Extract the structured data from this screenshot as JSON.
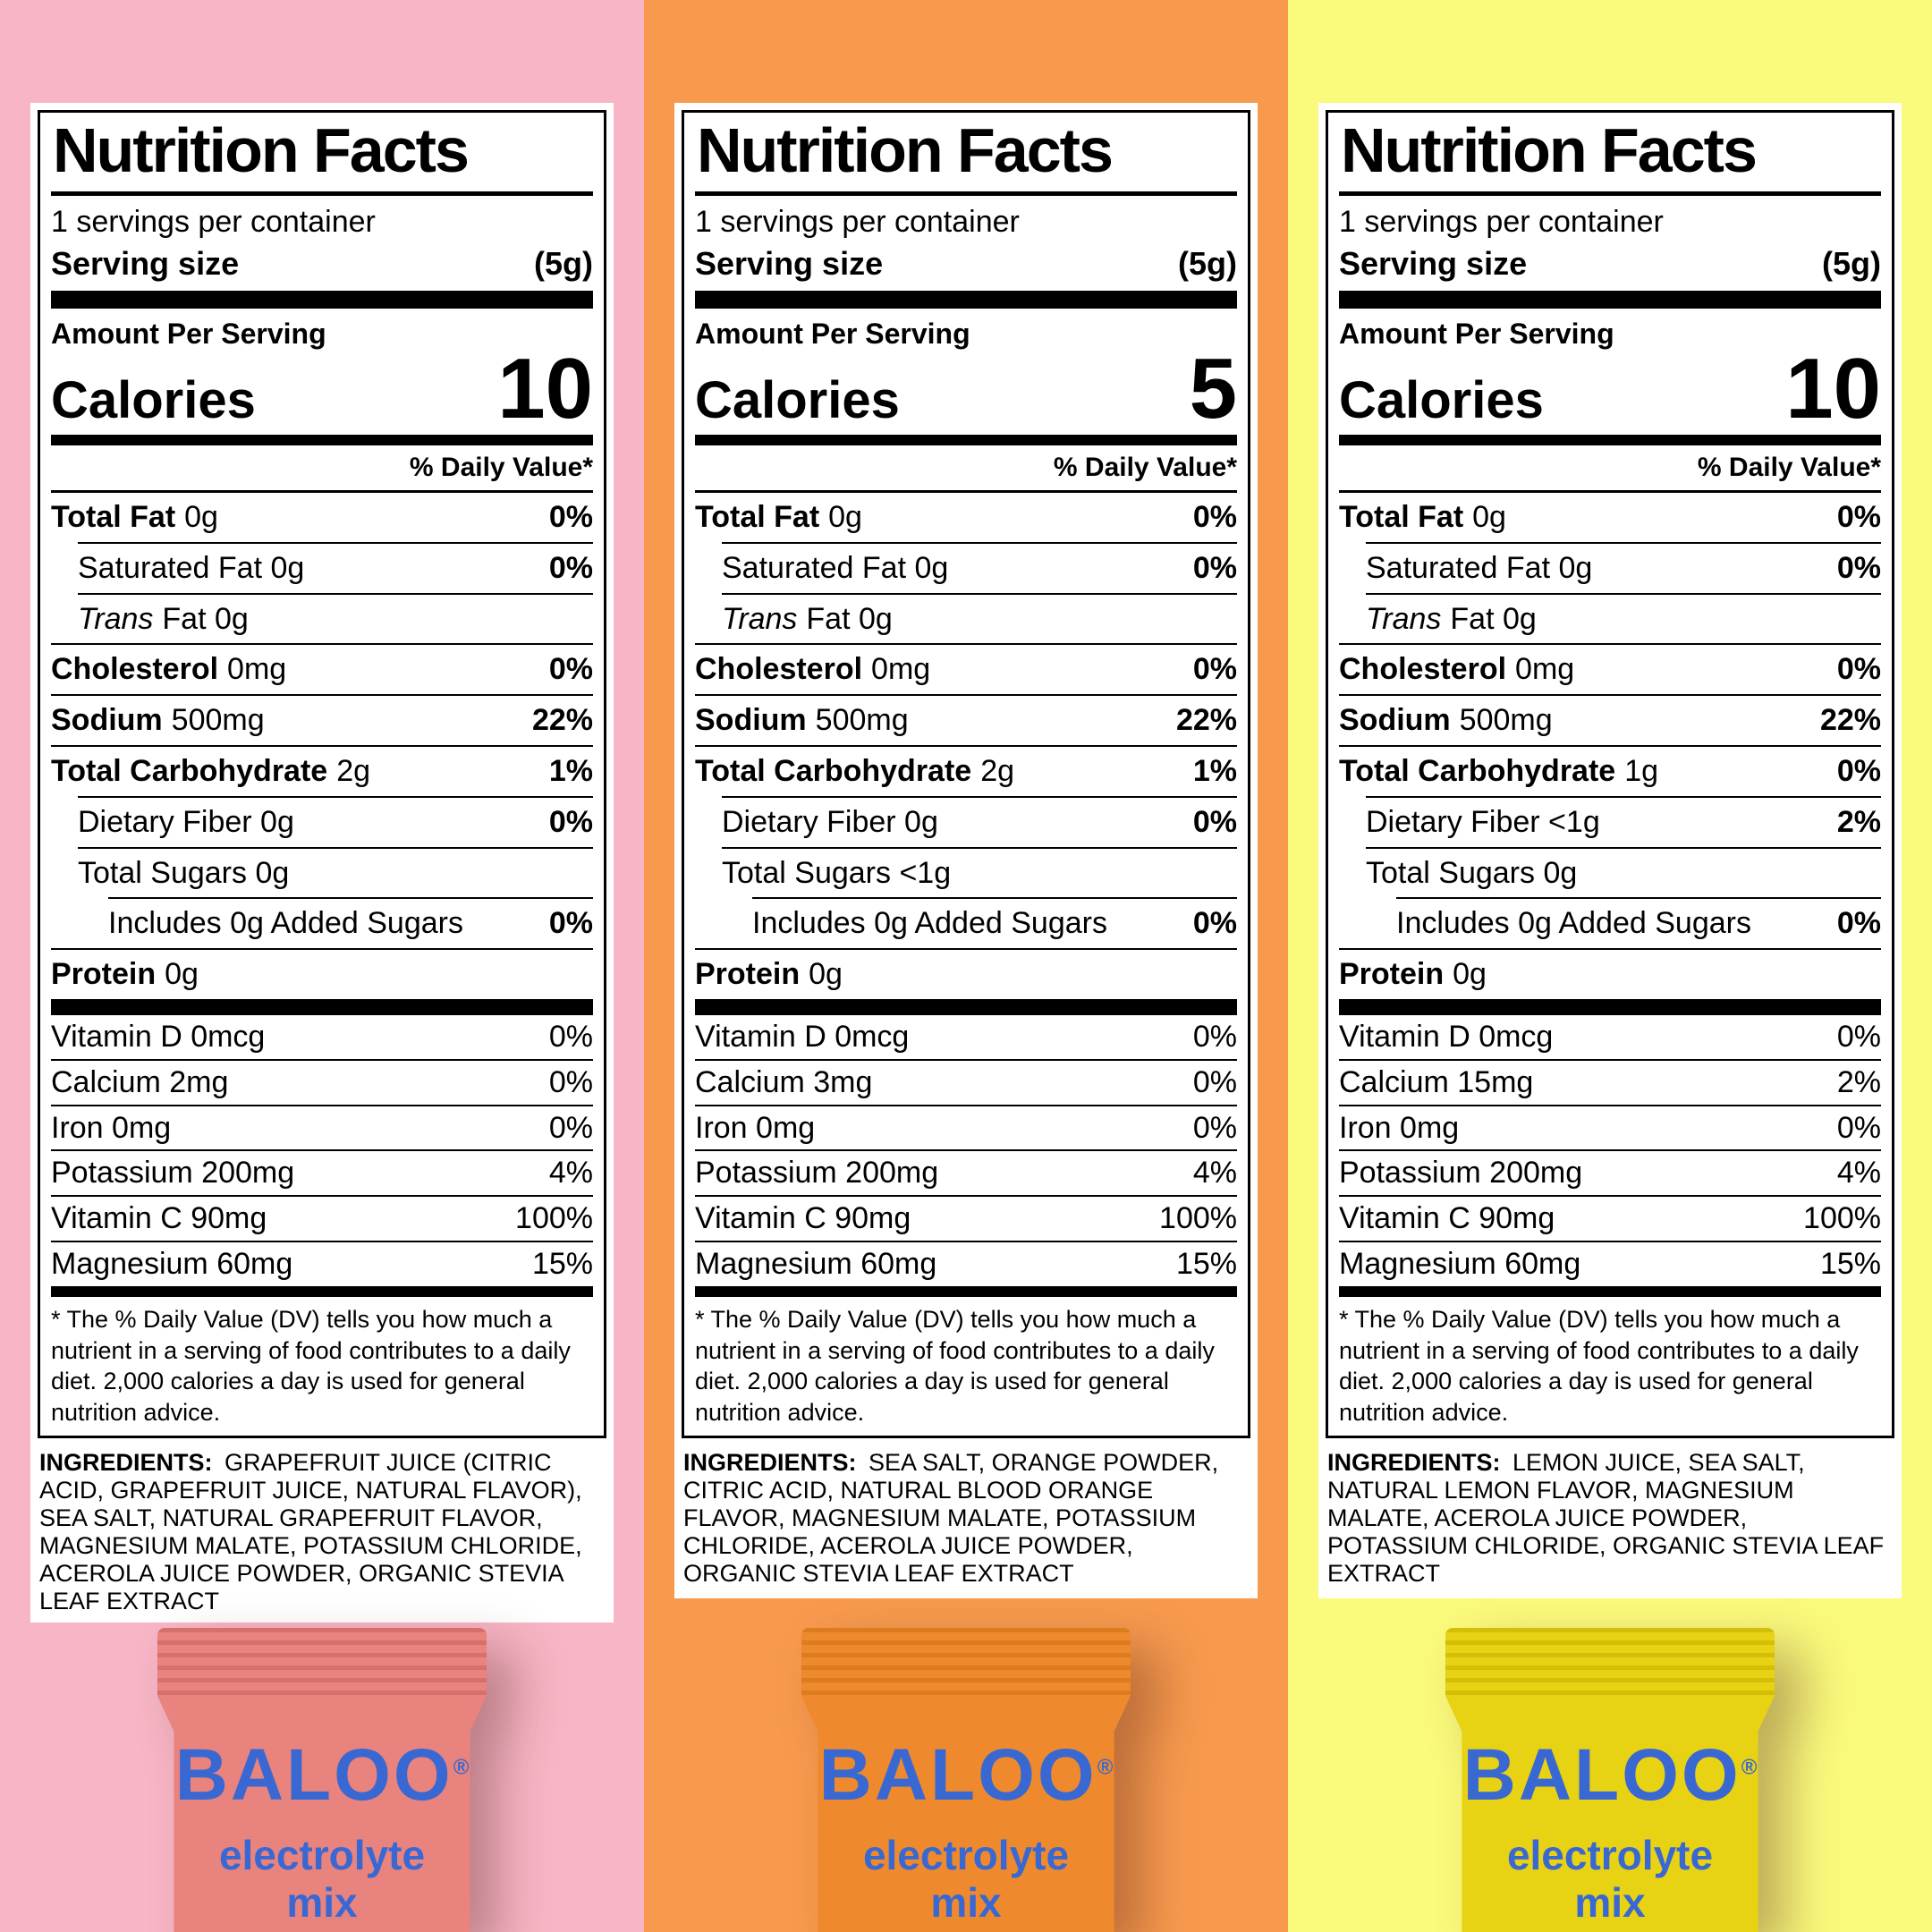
{
  "labels": [
    {
      "column_bg": "#F7B5C5",
      "title": "Nutrition Facts",
      "servings_per_container": "1 servings per container",
      "serving_size_label": "Serving size",
      "serving_size_value": "(5g)",
      "amount_per_serving": "Amount Per Serving",
      "calories_label": "Calories",
      "calories_value": "10",
      "daily_value_header": "% Daily Value*",
      "rows": [
        {
          "lead": "Total Fat",
          "lead_style": "bold",
          "rest": "0g",
          "dv": "0%",
          "indent": 0
        },
        {
          "lead": "",
          "lead_style": "none",
          "rest": "Saturated Fat 0g",
          "dv": "0%",
          "indent": 1
        },
        {
          "lead": "Trans",
          "lead_style": "italic",
          "rest": "Fat 0g",
          "dv": "",
          "indent": 1
        },
        {
          "lead": "Cholesterol",
          "lead_style": "bold",
          "rest": "0mg",
          "dv": "0%",
          "indent": 0
        },
        {
          "lead": "Sodium",
          "lead_style": "bold",
          "rest": "500mg",
          "dv": "22%",
          "indent": 0
        },
        {
          "lead": "Total Carbohydrate",
          "lead_style": "bold",
          "rest": "2g",
          "dv": "1%",
          "indent": 0
        },
        {
          "lead": "",
          "lead_style": "none",
          "rest": "Dietary Fiber 0g",
          "dv": "0%",
          "indent": 1
        },
        {
          "lead": "",
          "lead_style": "none",
          "rest": "Total Sugars 0g",
          "dv": "",
          "indent": 1
        },
        {
          "lead": "",
          "lead_style": "none",
          "rest": "Includes 0g Added Sugars",
          "dv": "0%",
          "indent": 2
        },
        {
          "lead": "Protein",
          "lead_style": "bold",
          "rest": "0g",
          "dv": "",
          "indent": 0
        }
      ],
      "vitamins": [
        {
          "text": "Vitamin D 0mcg",
          "dv": "0%"
        },
        {
          "text": "Calcium 2mg",
          "dv": "0%"
        },
        {
          "text": "Iron 0mg",
          "dv": "0%"
        },
        {
          "text": "Potassium 200mg",
          "dv": "4%"
        },
        {
          "text": "Vitamin C 90mg",
          "dv": "100%"
        },
        {
          "text": "Magnesium 60mg",
          "dv": "15%"
        }
      ],
      "footnote": "* The % Daily Value (DV) tells you how much a nutrient in a serving of food contributes to a daily diet. 2,000 calories a day is used for general nutrition advice.",
      "ingredients_label": "INGREDIENTS:",
      "ingredients_text": "GRAPEFRUIT JUICE (CITRIC ACID, GRAPEFRUIT JUICE, NATURAL FLAVOR), SEA SALT, NATURAL GRAPEFRUIT FLAVOR, MAGNESIUM MALATE, POTASSIUM CHLORIDE, ACEROLA JUICE POWDER, ORGANIC STEVIA LEAF EXTRACT",
      "packet": {
        "brand": "BALOO",
        "reg_mark": "®",
        "tagline_line1": "electrolyte",
        "tagline_line2": "mix",
        "body_color": "#E8837E",
        "ridge_color": "#D7706C",
        "text_color": "#3A68D2"
      }
    },
    {
      "column_bg": "#F79A4E",
      "title": "Nutrition Facts",
      "servings_per_container": "1 servings per container",
      "serving_size_label": "Serving size",
      "serving_size_value": "(5g)",
      "amount_per_serving": "Amount Per Serving",
      "calories_label": "Calories",
      "calories_value": "5",
      "daily_value_header": "% Daily Value*",
      "rows": [
        {
          "lead": "Total Fat",
          "lead_style": "bold",
          "rest": "0g",
          "dv": "0%",
          "indent": 0
        },
        {
          "lead": "",
          "lead_style": "none",
          "rest": "Saturated Fat 0g",
          "dv": "0%",
          "indent": 1
        },
        {
          "lead": "Trans",
          "lead_style": "italic",
          "rest": "Fat 0g",
          "dv": "",
          "indent": 1
        },
        {
          "lead": "Cholesterol",
          "lead_style": "bold",
          "rest": "0mg",
          "dv": "0%",
          "indent": 0
        },
        {
          "lead": "Sodium",
          "lead_style": "bold",
          "rest": "500mg",
          "dv": "22%",
          "indent": 0
        },
        {
          "lead": "Total Carbohydrate",
          "lead_style": "bold",
          "rest": "2g",
          "dv": "1%",
          "indent": 0
        },
        {
          "lead": "",
          "lead_style": "none",
          "rest": "Dietary Fiber 0g",
          "dv": "0%",
          "indent": 1
        },
        {
          "lead": "",
          "lead_style": "none",
          "rest": "Total Sugars <1g",
          "dv": "",
          "indent": 1
        },
        {
          "lead": "",
          "lead_style": "none",
          "rest": "Includes 0g Added Sugars",
          "dv": "0%",
          "indent": 2
        },
        {
          "lead": "Protein",
          "lead_style": "bold",
          "rest": "0g",
          "dv": "",
          "indent": 0
        }
      ],
      "vitamins": [
        {
          "text": "Vitamin D 0mcg",
          "dv": "0%"
        },
        {
          "text": "Calcium 3mg",
          "dv": "0%"
        },
        {
          "text": "Iron 0mg",
          "dv": "0%"
        },
        {
          "text": "Potassium 200mg",
          "dv": "4%"
        },
        {
          "text": "Vitamin C 90mg",
          "dv": "100%"
        },
        {
          "text": "Magnesium 60mg",
          "dv": "15%"
        }
      ],
      "footnote": "* The % Daily Value (DV) tells you how much a nutrient in a serving of food contributes to a daily diet. 2,000 calories a day is used for general nutrition advice.",
      "ingredients_label": "INGREDIENTS:",
      "ingredients_text": "SEA SALT, ORANGE POWDER, CITRIC ACID, NATURAL BLOOD ORANGE FLAVOR, MAGNESIUM MALATE, POTASSIUM CHLORIDE, ACEROLA JUICE POWDER, ORGANIC STEVIA LEAF EXTRACT",
      "packet": {
        "brand": "BALOO",
        "reg_mark": "®",
        "tagline_line1": "electrolyte",
        "tagline_line2": "mix",
        "body_color": "#EE8A2D",
        "ridge_color": "#DD7B1F",
        "text_color": "#3A68D2"
      }
    },
    {
      "column_bg": "#FAFA7C",
      "title": "Nutrition Facts",
      "servings_per_container": "1 servings per container",
      "serving_size_label": "Serving size",
      "serving_size_value": "(5g)",
      "amount_per_serving": "Amount Per Serving",
      "calories_label": "Calories",
      "calories_value": "10",
      "daily_value_header": "% Daily Value*",
      "rows": [
        {
          "lead": "Total Fat",
          "lead_style": "bold",
          "rest": "0g",
          "dv": "0%",
          "indent": 0
        },
        {
          "lead": "",
          "lead_style": "none",
          "rest": "Saturated Fat 0g",
          "dv": "0%",
          "indent": 1
        },
        {
          "lead": "Trans",
          "lead_style": "italic",
          "rest": "Fat 0g",
          "dv": "",
          "indent": 1
        },
        {
          "lead": "Cholesterol",
          "lead_style": "bold",
          "rest": "0mg",
          "dv": "0%",
          "indent": 0
        },
        {
          "lead": "Sodium",
          "lead_style": "bold",
          "rest": "500mg",
          "dv": "22%",
          "indent": 0
        },
        {
          "lead": "Total Carbohydrate",
          "lead_style": "bold",
          "rest": "1g",
          "dv": "0%",
          "indent": 0
        },
        {
          "lead": "",
          "lead_style": "none",
          "rest": "Dietary Fiber <1g",
          "dv": "2%",
          "indent": 1
        },
        {
          "lead": "",
          "lead_style": "none",
          "rest": "Total Sugars 0g",
          "dv": "",
          "indent": 1
        },
        {
          "lead": "",
          "lead_style": "none",
          "rest": "Includes 0g Added Sugars",
          "dv": "0%",
          "indent": 2
        },
        {
          "lead": "Protein",
          "lead_style": "bold",
          "rest": "0g",
          "dv": "",
          "indent": 0
        }
      ],
      "vitamins": [
        {
          "text": "Vitamin D 0mcg",
          "dv": "0%"
        },
        {
          "text": "Calcium 15mg",
          "dv": "2%"
        },
        {
          "text": "Iron 0mg",
          "dv": "0%"
        },
        {
          "text": "Potassium 200mg",
          "dv": "4%"
        },
        {
          "text": "Vitamin C 90mg",
          "dv": "100%"
        },
        {
          "text": "Magnesium 60mg",
          "dv": "15%"
        }
      ],
      "footnote": "* The % Daily Value (DV) tells you how much a nutrient in a serving of food contributes to a daily diet. 2,000 calories a day is used for general nutrition advice.",
      "ingredients_label": "INGREDIENTS:",
      "ingredients_text": "LEMON JUICE, SEA SALT, NATURAL LEMON FLAVOR, MAGNESIUM MALATE, ACEROLA JUICE POWDER, POTASSIUM CHLORIDE, ORGANIC STEVIA LEAF EXTRACT",
      "packet": {
        "brand": "BALOO",
        "reg_mark": "®",
        "tagline_line1": "electrolyte",
        "tagline_line2": "mix",
        "body_color": "#E7D214",
        "ridge_color": "#D3BF08",
        "text_color": "#3A68D2"
      }
    }
  ]
}
